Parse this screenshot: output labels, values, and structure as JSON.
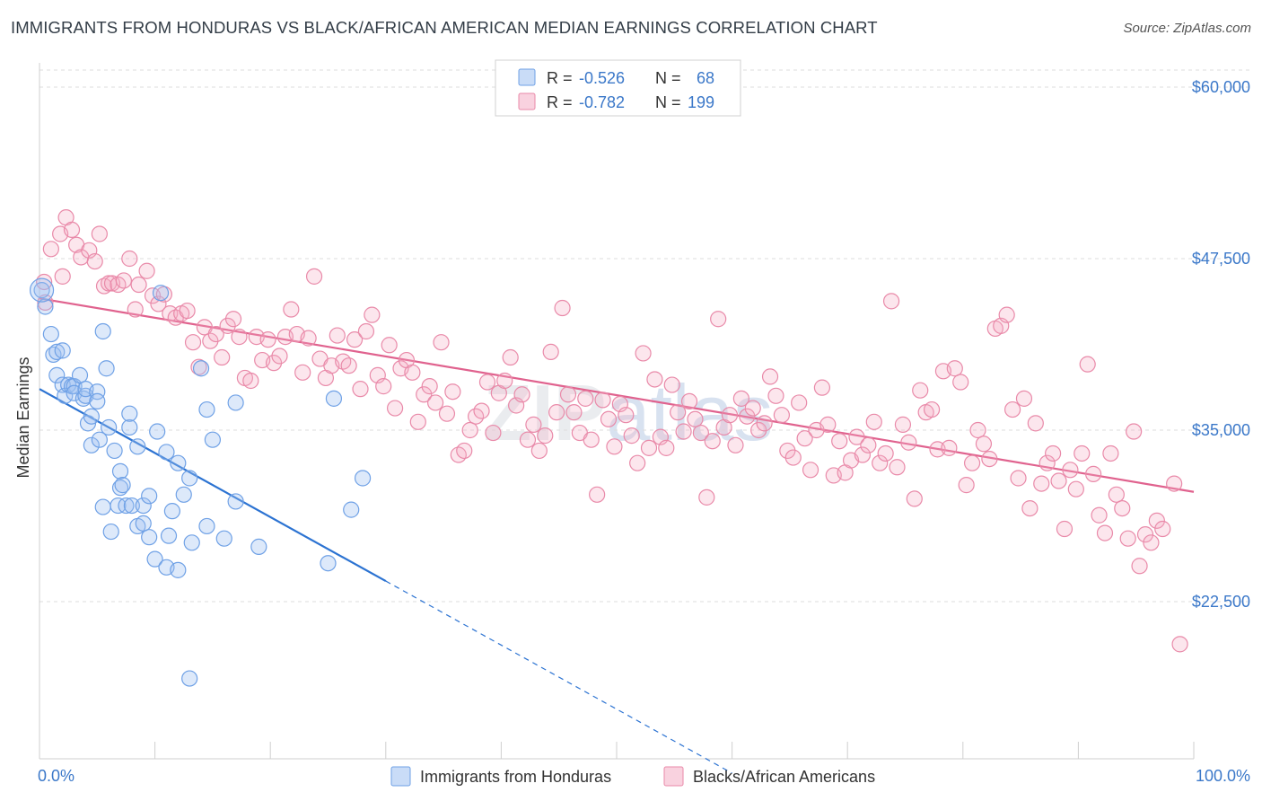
{
  "title": "IMMIGRANTS FROM HONDURAS VS BLACK/AFRICAN AMERICAN MEDIAN EARNINGS CORRELATION CHART",
  "source": "Source: ZipAtlas.com",
  "watermark": "ZIPatlas",
  "colors": {
    "blue": "#6fa1e6",
    "blue_fill": "rgba(157,192,240,0.35)",
    "blue_line": "#2c73d2",
    "pink": "#e98aa9",
    "pink_fill": "rgba(244,173,196,0.3)",
    "pink_line": "#e0628e",
    "label": "#3b78c9",
    "grid": "#dddddd"
  },
  "legend": {
    "rows": [
      {
        "r_label": "R =",
        "r_value": "-0.526",
        "n_label": "N =",
        "n_value": "68",
        "color": "blue"
      },
      {
        "r_label": "R =",
        "r_value": "-0.782",
        "n_label": "N =",
        "n_value": "199",
        "color": "pink"
      }
    ]
  },
  "bottom_legend": [
    "Immigrants from Honduras",
    "Blacks/African Americans"
  ],
  "chart_data": {
    "type": "scatter",
    "title": "IMMIGRANTS FROM HONDURAS VS BLACK/AFRICAN AMERICAN MEDIAN EARNINGS CORRELATION CHART",
    "xlabel": "",
    "ylabel": "Median Earnings",
    "xlim": [
      0,
      100
    ],
    "ylim": [
      12000,
      62000
    ],
    "x_tick_labels": [
      "0.0%",
      "100.0%"
    ],
    "y_ticks": [
      22500,
      35000,
      47500,
      60000
    ],
    "y_tick_labels": [
      "$22,500",
      "$35,000",
      "$47,500",
      "$60,000"
    ],
    "grid": true,
    "legend_position": "top-center",
    "series": [
      {
        "name": "Immigrants from Honduras",
        "color": "blue",
        "r": -0.526,
        "n": 68,
        "trend": {
          "x0": 0,
          "y0": 38000,
          "x1": 30,
          "y1": 24000,
          "dashed_to_x": 60
        },
        "points": [
          [
            0.2,
            45200
          ],
          [
            0.5,
            44000
          ],
          [
            1,
            42000
          ],
          [
            1.2,
            40500
          ],
          [
            1.5,
            39000
          ],
          [
            1.5,
            40700
          ],
          [
            2,
            40800
          ],
          [
            2,
            38300
          ],
          [
            2.2,
            37500
          ],
          [
            2.5,
            38300
          ],
          [
            2.8,
            38200
          ],
          [
            3,
            38200
          ],
          [
            3,
            37700
          ],
          [
            3.5,
            39000
          ],
          [
            3.8,
            37300
          ],
          [
            4,
            37500
          ],
          [
            4,
            38000
          ],
          [
            4.2,
            35500
          ],
          [
            4.5,
            36000
          ],
          [
            4.5,
            33900
          ],
          [
            5,
            37800
          ],
          [
            5,
            37100
          ],
          [
            5.2,
            34300
          ],
          [
            5.5,
            29400
          ],
          [
            5.5,
            42200
          ],
          [
            5.8,
            39500
          ],
          [
            6,
            35200
          ],
          [
            6.2,
            27600
          ],
          [
            6.5,
            33500
          ],
          [
            6.8,
            29500
          ],
          [
            7,
            30800
          ],
          [
            7,
            32000
          ],
          [
            7.2,
            31000
          ],
          [
            7.5,
            29500
          ],
          [
            7.8,
            35200
          ],
          [
            7.8,
            36200
          ],
          [
            8,
            29500
          ],
          [
            8.5,
            28000
          ],
          [
            8.5,
            33800
          ],
          [
            9,
            28200
          ],
          [
            9,
            29500
          ],
          [
            9.5,
            30200
          ],
          [
            9.5,
            27200
          ],
          [
            10,
            25600
          ],
          [
            10.2,
            34900
          ],
          [
            10.5,
            45000
          ],
          [
            11,
            25000
          ],
          [
            11,
            33400
          ],
          [
            11.2,
            27300
          ],
          [
            11.5,
            29100
          ],
          [
            12,
            32600
          ],
          [
            12,
            24800
          ],
          [
            12.5,
            30300
          ],
          [
            13,
            31500
          ],
          [
            13.2,
            26800
          ],
          [
            14,
            39500
          ],
          [
            14.5,
            28000
          ],
          [
            14.5,
            36500
          ],
          [
            15,
            34300
          ],
          [
            16,
            27100
          ],
          [
            17,
            29800
          ],
          [
            17,
            37000
          ],
          [
            19,
            26500
          ],
          [
            25,
            25300
          ],
          [
            25.5,
            37300
          ],
          [
            27,
            29200
          ],
          [
            28,
            31500
          ],
          [
            13,
            16900
          ]
        ]
      },
      {
        "name": "Blacks/African Americans",
        "color": "pink",
        "r": -0.782,
        "n": 199,
        "trend": {
          "x0": 0,
          "y0": 44600,
          "x1": 100,
          "y1": 30500
        },
        "points": [
          [
            0.4,
            45800
          ],
          [
            0.5,
            44300
          ],
          [
            1,
            48200
          ],
          [
            1.8,
            49300
          ],
          [
            2,
            46200
          ],
          [
            2.3,
            50500
          ],
          [
            2.8,
            49600
          ],
          [
            3.2,
            48500
          ],
          [
            3.6,
            47600
          ],
          [
            4.3,
            48100
          ],
          [
            4.8,
            47300
          ],
          [
            5.2,
            49300
          ],
          [
            5.6,
            45500
          ],
          [
            6,
            45700
          ],
          [
            6.3,
            45700
          ],
          [
            6.8,
            45600
          ],
          [
            7.3,
            45900
          ],
          [
            7.8,
            47500
          ],
          [
            8.3,
            43800
          ],
          [
            8.6,
            45600
          ],
          [
            9.3,
            46600
          ],
          [
            9.8,
            44800
          ],
          [
            10.3,
            44200
          ],
          [
            10.8,
            44900
          ],
          [
            11.3,
            43500
          ],
          [
            11.8,
            43200
          ],
          [
            12.3,
            43500
          ],
          [
            12.8,
            43700
          ],
          [
            13.3,
            41400
          ],
          [
            13.8,
            39600
          ],
          [
            14.3,
            42500
          ],
          [
            14.8,
            41500
          ],
          [
            15.3,
            42000
          ],
          [
            15.8,
            40300
          ],
          [
            16.3,
            42600
          ],
          [
            16.8,
            43100
          ],
          [
            17.3,
            41800
          ],
          [
            17.8,
            38800
          ],
          [
            18.3,
            38600
          ],
          [
            18.8,
            41800
          ],
          [
            19.3,
            40100
          ],
          [
            19.8,
            41600
          ],
          [
            20.3,
            39900
          ],
          [
            20.8,
            40400
          ],
          [
            21.3,
            41800
          ],
          [
            21.8,
            43800
          ],
          [
            22.3,
            42000
          ],
          [
            22.8,
            39200
          ],
          [
            23.3,
            41700
          ],
          [
            23.8,
            46200
          ],
          [
            24.3,
            40200
          ],
          [
            24.8,
            38800
          ],
          [
            25.3,
            39700
          ],
          [
            25.8,
            41900
          ],
          [
            26.3,
            40000
          ],
          [
            26.8,
            39700
          ],
          [
            27.3,
            41600
          ],
          [
            27.8,
            38000
          ],
          [
            28.3,
            42200
          ],
          [
            28.8,
            43400
          ],
          [
            29.3,
            39000
          ],
          [
            29.8,
            38200
          ],
          [
            30.3,
            41200
          ],
          [
            30.8,
            36600
          ],
          [
            31.3,
            39500
          ],
          [
            31.8,
            40100
          ],
          [
            32.3,
            39200
          ],
          [
            32.8,
            35600
          ],
          [
            33.3,
            37600
          ],
          [
            33.8,
            38200
          ],
          [
            34.3,
            37000
          ],
          [
            34.8,
            41400
          ],
          [
            35.3,
            36200
          ],
          [
            35.8,
            37800
          ],
          [
            36.3,
            33200
          ],
          [
            36.8,
            33500
          ],
          [
            37.3,
            35000
          ],
          [
            37.8,
            36000
          ],
          [
            38.3,
            36400
          ],
          [
            38.8,
            38500
          ],
          [
            39.3,
            34800
          ],
          [
            39.8,
            37700
          ],
          [
            40.3,
            38600
          ],
          [
            40.8,
            40300
          ],
          [
            41.3,
            36800
          ],
          [
            41.8,
            37600
          ],
          [
            42.3,
            34300
          ],
          [
            42.8,
            35400
          ],
          [
            43.3,
            33500
          ],
          [
            43.8,
            34600
          ],
          [
            44.3,
            40700
          ],
          [
            44.8,
            36300
          ],
          [
            45.3,
            43900
          ],
          [
            45.8,
            37600
          ],
          [
            46.3,
            36300
          ],
          [
            46.8,
            34800
          ],
          [
            47.3,
            37300
          ],
          [
            47.8,
            34300
          ],
          [
            48.3,
            30300
          ],
          [
            48.8,
            37200
          ],
          [
            49.3,
            35800
          ],
          [
            49.8,
            33800
          ],
          [
            50.3,
            36900
          ],
          [
            50.8,
            36100
          ],
          [
            51.3,
            34600
          ],
          [
            51.8,
            32600
          ],
          [
            52.3,
            40600
          ],
          [
            52.8,
            33700
          ],
          [
            53.3,
            38700
          ],
          [
            53.8,
            34500
          ],
          [
            54.3,
            33700
          ],
          [
            54.8,
            38300
          ],
          [
            55.3,
            36300
          ],
          [
            55.8,
            34900
          ],
          [
            56.3,
            37100
          ],
          [
            56.8,
            35800
          ],
          [
            57.3,
            34800
          ],
          [
            57.8,
            30100
          ],
          [
            58.3,
            34200
          ],
          [
            58.8,
            43100
          ],
          [
            59.3,
            35200
          ],
          [
            59.8,
            36100
          ],
          [
            60.3,
            33900
          ],
          [
            60.8,
            37300
          ],
          [
            61.3,
            36000
          ],
          [
            61.8,
            36600
          ],
          [
            62.3,
            35000
          ],
          [
            62.8,
            35500
          ],
          [
            63.3,
            38900
          ],
          [
            63.8,
            37500
          ],
          [
            64.3,
            36100
          ],
          [
            64.8,
            33500
          ],
          [
            65.3,
            33000
          ],
          [
            65.8,
            37000
          ],
          [
            66.3,
            34400
          ],
          [
            66.8,
            32100
          ],
          [
            67.3,
            35000
          ],
          [
            67.8,
            38100
          ],
          [
            68.3,
            35400
          ],
          [
            68.8,
            31700
          ],
          [
            69.3,
            34200
          ],
          [
            69.8,
            31900
          ],
          [
            70.3,
            32800
          ],
          [
            70.8,
            34500
          ],
          [
            71.3,
            33200
          ],
          [
            71.8,
            33900
          ],
          [
            72.3,
            35600
          ],
          [
            72.8,
            32600
          ],
          [
            73.3,
            33300
          ],
          [
            73.8,
            44400
          ],
          [
            74.3,
            32300
          ],
          [
            74.8,
            35400
          ],
          [
            75.3,
            34100
          ],
          [
            75.8,
            30000
          ],
          [
            76.3,
            37900
          ],
          [
            76.8,
            36300
          ],
          [
            77.3,
            36500
          ],
          [
            77.8,
            33600
          ],
          [
            78.3,
            39300
          ],
          [
            78.8,
            33700
          ],
          [
            79.3,
            39500
          ],
          [
            79.8,
            38500
          ],
          [
            80.3,
            31000
          ],
          [
            80.8,
            32600
          ],
          [
            81.3,
            35000
          ],
          [
            81.8,
            34000
          ],
          [
            82.3,
            32900
          ],
          [
            82.8,
            42400
          ],
          [
            83.3,
            42600
          ],
          [
            83.8,
            43400
          ],
          [
            84.3,
            36500
          ],
          [
            84.8,
            31500
          ],
          [
            85.3,
            37300
          ],
          [
            85.8,
            29300
          ],
          [
            86.3,
            35500
          ],
          [
            86.8,
            31100
          ],
          [
            87.3,
            32600
          ],
          [
            87.8,
            33300
          ],
          [
            88.3,
            31300
          ],
          [
            88.8,
            27800
          ],
          [
            89.3,
            32100
          ],
          [
            89.8,
            30700
          ],
          [
            90.3,
            33300
          ],
          [
            90.8,
            39800
          ],
          [
            91.3,
            31800
          ],
          [
            91.8,
            28800
          ],
          [
            92.3,
            27500
          ],
          [
            92.8,
            33300
          ],
          [
            93.3,
            30300
          ],
          [
            93.8,
            29300
          ],
          [
            94.3,
            27100
          ],
          [
            94.8,
            34900
          ],
          [
            95.3,
            25100
          ],
          [
            95.8,
            27400
          ],
          [
            96.3,
            26800
          ],
          [
            96.8,
            28400
          ],
          [
            97.3,
            27800
          ],
          [
            98.3,
            31100
          ],
          [
            98.8,
            19400
          ]
        ]
      }
    ]
  }
}
